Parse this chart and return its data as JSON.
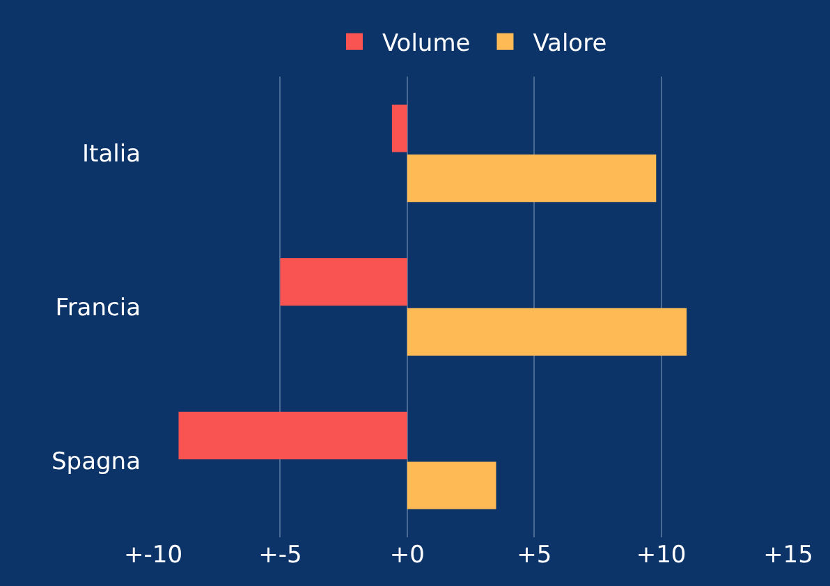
{
  "chart_data": {
    "type": "bar",
    "orientation": "horizontal",
    "categories": [
      "Italia",
      "Francia",
      "Spagna"
    ],
    "series": [
      {
        "name": "Volume",
        "color": "#f95352",
        "values": [
          -0.6,
          -5.0,
          -9.0
        ]
      },
      {
        "name": "Valore",
        "color": "#fdba55",
        "values": [
          9.8,
          11.0,
          3.5
        ]
      }
    ],
    "xlim": [
      -10,
      15
    ],
    "xticks": [
      {
        "value": -10,
        "label": "+-10"
      },
      {
        "value": -5,
        "label": "+-5"
      },
      {
        "value": 0,
        "label": "+0"
      },
      {
        "value": 5,
        "label": "+5"
      },
      {
        "value": 10,
        "label": "+10"
      },
      {
        "value": 15,
        "label": "+15"
      }
    ],
    "grid": "x",
    "legend": "top"
  }
}
